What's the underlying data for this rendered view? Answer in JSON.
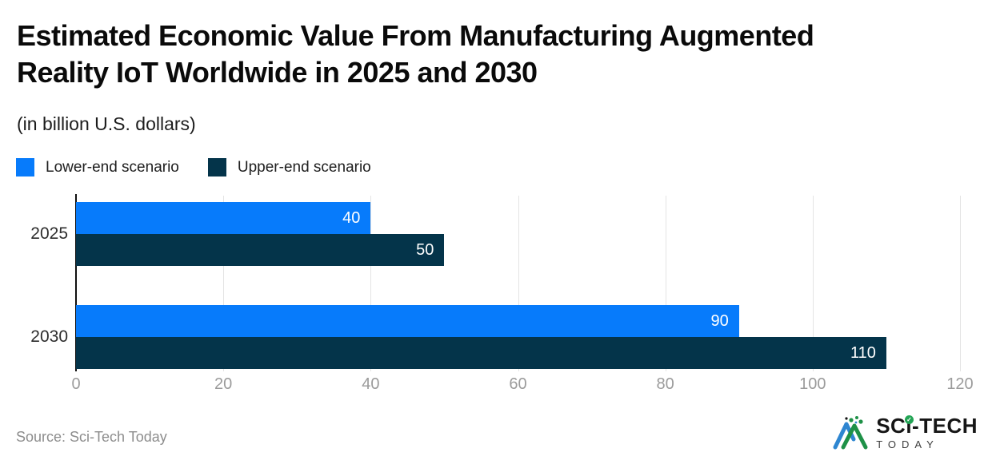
{
  "title": {
    "line1": "Estimated Economic Value From Manufacturing Augmented",
    "line2": "Reality IoT Worldwide in 2025 and 2030"
  },
  "subtitle": "(in billion U.S. dollars)",
  "legend": {
    "items": [
      {
        "label": "Lower-end scenario",
        "color": "#077bfb"
      },
      {
        "label": "Upper-end scenario",
        "color": "#04344a"
      }
    ]
  },
  "source_note": "Source: Sci-Tech Today",
  "logo": {
    "name": "SCi-TECH",
    "tagline": "TODAY",
    "check_icon": "check-icon"
  },
  "colors": {
    "lower_bar": "#077bfb",
    "upper_bar": "#04344a",
    "gridline": "#e3e3e3",
    "axis_line": "#101010",
    "tick_label": "#9b9b9b",
    "category_label": "#2d2d2d",
    "value_label": "#ffffff",
    "source_text": "#8d8d8d",
    "logo_green": "#1e9147",
    "logo_blue": "#2e86d1"
  },
  "chart_data": {
    "type": "bar",
    "orientation": "horizontal",
    "title": "Estimated Economic Value From Manufacturing Augmented Reality IoT Worldwide in 2025 and 2030",
    "subtitle": "(in billion U.S. dollars)",
    "categories": [
      "2025",
      "2030"
    ],
    "series": [
      {
        "name": "Lower-end scenario",
        "color": "#077bfb",
        "values": [
          40,
          90
        ]
      },
      {
        "name": "Upper-end scenario",
        "color": "#04344a",
        "values": [
          50,
          110
        ]
      }
    ],
    "xlim": [
      0,
      120
    ],
    "xticks": [
      0,
      20,
      40,
      60,
      80,
      100,
      120
    ],
    "xlabel": "",
    "ylabel": "",
    "grid": true,
    "value_labels": "inside-end",
    "legend_position": "top-left"
  }
}
